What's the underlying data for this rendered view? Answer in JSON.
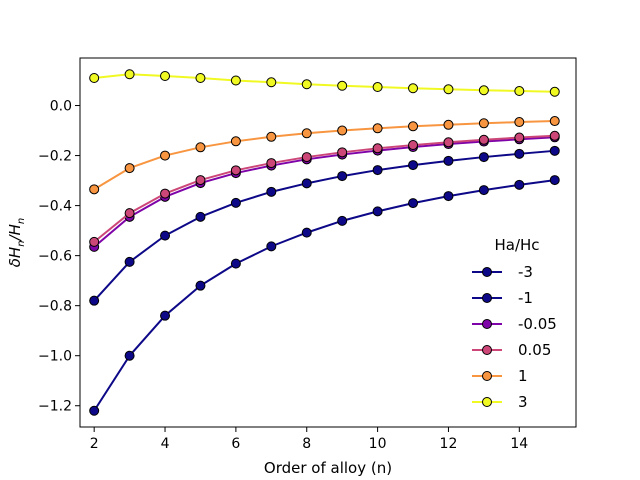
{
  "chart_data": {
    "type": "line",
    "title": "",
    "xlabel": "Order of alloy (n)",
    "ylabel_main": "δH",
    "ylabel_sub1": "n",
    "ylabel_sep": "/H",
    "ylabel_sub2": "n",
    "xlim": [
      1.6,
      15.6
    ],
    "ylim": [
      -1.285,
      0.19
    ],
    "xticks": [
      2,
      4,
      6,
      8,
      10,
      12,
      14
    ],
    "yticks": [
      0.0,
      -0.2,
      -0.4,
      -0.6,
      -0.8,
      -1.0,
      -1.2
    ],
    "ytick_labels": [
      "0.0",
      "−0.2",
      "−0.4",
      "−0.6",
      "−0.8",
      "−1.0",
      "−1.2"
    ],
    "x": [
      2,
      3,
      4,
      5,
      6,
      7,
      8,
      9,
      10,
      11,
      12,
      13,
      14,
      15
    ],
    "legend_title": "Ha/Hc",
    "legend_position": "lower-right",
    "series": [
      {
        "name": "-3",
        "color": "#0d0887",
        "marker_fill": "#0d0887",
        "values": [
          -1.22,
          -1.0,
          -0.84,
          -0.72,
          -0.632,
          -0.563,
          -0.508,
          -0.461,
          -0.423,
          -0.39,
          -0.362,
          -0.338,
          -0.317,
          -0.298
        ]
      },
      {
        "name": "-1",
        "color": "#0d0887",
        "marker_fill": "#0d0887",
        "values": [
          -0.78,
          -0.625,
          -0.52,
          -0.445,
          -0.389,
          -0.345,
          -0.311,
          -0.282,
          -0.258,
          -0.238,
          -0.221,
          -0.206,
          -0.193,
          -0.181
        ]
      },
      {
        "name": "-0.05",
        "color": "#7e03a8",
        "marker_fill": "#7e03a8",
        "values": [
          -0.565,
          -0.445,
          -0.365,
          -0.31,
          -0.27,
          -0.24,
          -0.215,
          -0.196,
          -0.18,
          -0.166,
          -0.154,
          -0.144,
          -0.135,
          -0.127
        ]
      },
      {
        "name": "0.05",
        "color": "#cc4778",
        "marker_fill": "#cc4778",
        "values": [
          -0.545,
          -0.43,
          -0.352,
          -0.298,
          -0.259,
          -0.23,
          -0.206,
          -0.187,
          -0.171,
          -0.158,
          -0.147,
          -0.137,
          -0.128,
          -0.121
        ]
      },
      {
        "name": "1",
        "color": "#f89540",
        "marker_fill": "#f89540",
        "values": [
          -0.335,
          -0.25,
          -0.2,
          -0.167,
          -0.143,
          -0.125,
          -0.111,
          -0.1,
          -0.091,
          -0.083,
          -0.077,
          -0.071,
          -0.066,
          -0.062
        ]
      },
      {
        "name": "3",
        "color": "#f0f921",
        "marker_fill": "#f0f921",
        "values": [
          0.11,
          0.125,
          0.118,
          0.11,
          0.1,
          0.093,
          0.085,
          0.079,
          0.074,
          0.069,
          0.065,
          0.061,
          0.058,
          0.055
        ]
      }
    ]
  }
}
